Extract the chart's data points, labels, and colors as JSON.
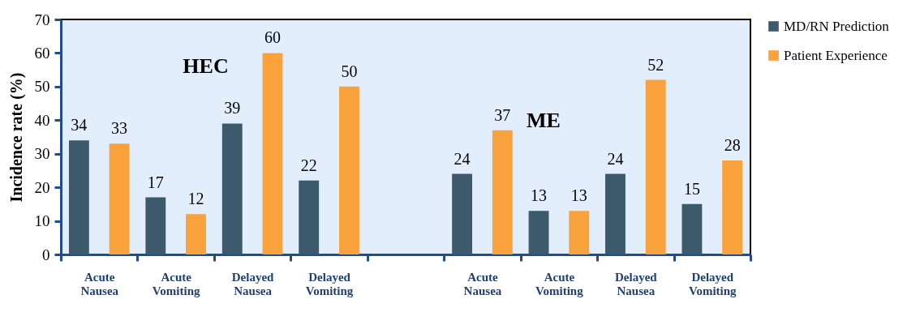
{
  "chart_data": {
    "type": "bar",
    "ylabel": "Incidence rate (%)",
    "categories": [
      "Acute Nausea",
      "Acute Vomiting",
      "Delayed Nausea",
      "Delayed Vomiting",
      null,
      "Acute Nausea",
      "Acute Vomiting",
      "Delayed Nausea",
      "Delayed Vomiting"
    ],
    "series": [
      {
        "name": "MD/RN Prediction",
        "color": "#3d5a6c",
        "values": [
          34,
          17,
          39,
          22,
          null,
          24,
          13,
          24,
          15
        ]
      },
      {
        "name": "Patient Experience",
        "color": "#f9a13a",
        "values": [
          33,
          12,
          60,
          50,
          null,
          37,
          13,
          52,
          28
        ]
      }
    ],
    "ylim": [
      0,
      70
    ],
    "yticks": [
      0,
      10,
      20,
      30,
      40,
      50,
      60,
      70
    ],
    "annotations": [
      "HEC",
      "ME"
    ],
    "data_labels": true,
    "legend": "right",
    "grid": false
  }
}
